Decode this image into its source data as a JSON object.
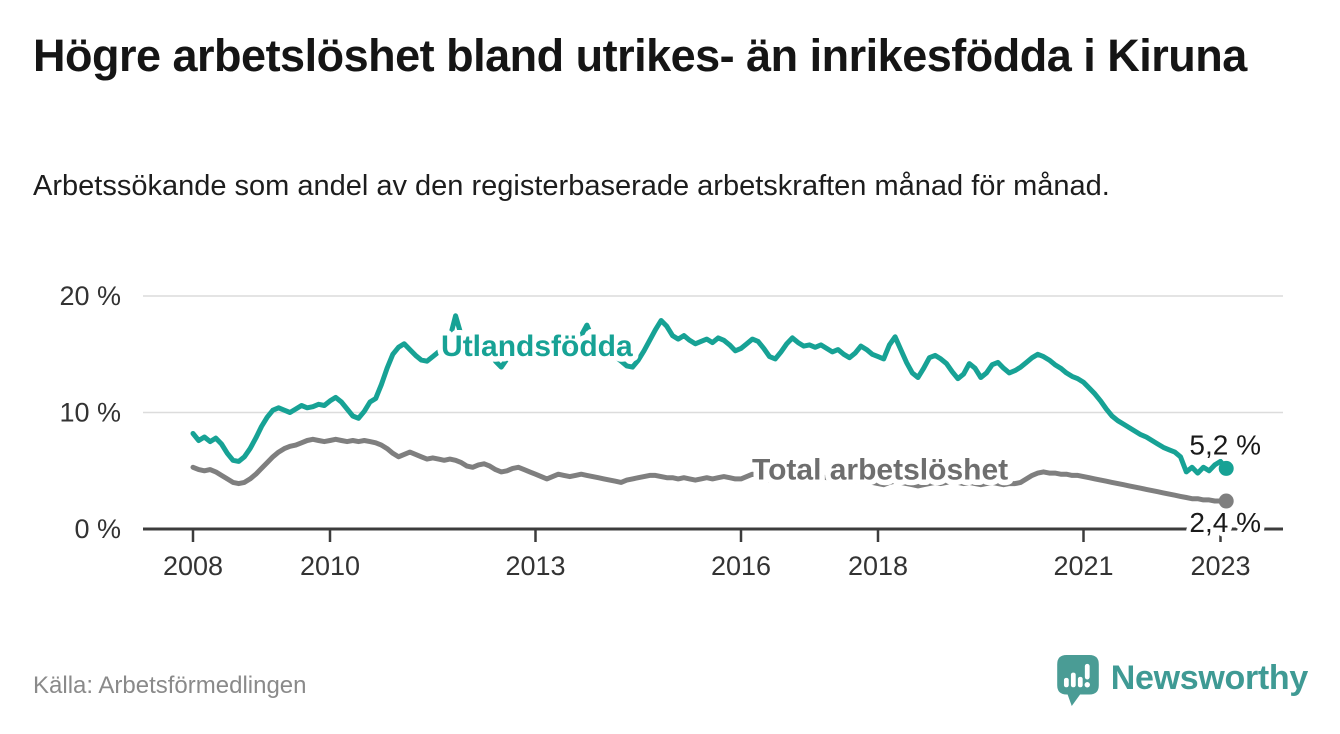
{
  "header": {
    "title": "Högre arbetslöshet bland utrikes- än inrikesfödda i Kiruna",
    "subtitle": "Arbetssökande som andel av den registerbaserade arbetskraften månad för månad."
  },
  "footer": {
    "source": "Källa: Arbetsförmedlingen",
    "logo_text": "Newsworthy",
    "logo_icon": "bar-chart-speech-bubble-icon"
  },
  "colors": {
    "accent_teal": "#17a295",
    "series_gray": "#7f7f7f",
    "series_label_gray": "#6e6e6e",
    "grid": "#dcdcdc",
    "axis": "#3c3c3c",
    "axis_text": "#333333",
    "value_text": "#1a1a1a",
    "logo_teal": "#459a93"
  },
  "chart_data": {
    "type": "line",
    "unit": "%",
    "grid": "horizontal-only",
    "legend": "inline-labels",
    "x_start_year": 2008,
    "x_step_months": 1,
    "x_axis": {
      "range": [
        2007.3,
        2023.9
      ],
      "ticks": [
        {
          "value": 2008,
          "label": "2008"
        },
        {
          "value": 2010,
          "label": "2010"
        },
        {
          "value": 2013,
          "label": "2013"
        },
        {
          "value": 2016,
          "label": "2016"
        },
        {
          "value": 2018,
          "label": "2018"
        },
        {
          "value": 2021,
          "label": "2021"
        },
        {
          "value": 2023,
          "label": "2023"
        }
      ]
    },
    "y_axis": {
      "range": [
        0,
        20
      ],
      "ticks": [
        {
          "value": 0,
          "label": "0 %"
        },
        {
          "value": 10,
          "label": "10 %"
        },
        {
          "value": 20,
          "label": "20 %"
        }
      ]
    },
    "series": [
      {
        "name": "Total arbetslöshet",
        "color": "#7f7f7f",
        "label": {
          "text": "Total arbetslöshet",
          "t": 2018.03,
          "v": 5.06,
          "color": "#6e6e6e"
        },
        "end_label": {
          "text": "2,4 %",
          "position": "below"
        },
        "values": [
          5.3,
          5.1,
          5.0,
          5.1,
          4.9,
          4.6,
          4.3,
          4.0,
          3.9,
          4.0,
          4.3,
          4.7,
          5.2,
          5.7,
          6.2,
          6.6,
          6.9,
          7.1,
          7.2,
          7.4,
          7.6,
          7.7,
          7.6,
          7.5,
          7.6,
          7.7,
          7.6,
          7.5,
          7.6,
          7.5,
          7.6,
          7.5,
          7.4,
          7.2,
          6.9,
          6.5,
          6.2,
          6.4,
          6.6,
          6.4,
          6.2,
          6.0,
          6.1,
          6.0,
          5.9,
          6.0,
          5.9,
          5.7,
          5.4,
          5.3,
          5.5,
          5.6,
          5.4,
          5.1,
          4.9,
          5.0,
          5.2,
          5.3,
          5.1,
          4.9,
          4.7,
          4.5,
          4.3,
          4.5,
          4.7,
          4.6,
          4.5,
          4.6,
          4.7,
          4.6,
          4.5,
          4.4,
          4.3,
          4.2,
          4.1,
          4.0,
          4.2,
          4.3,
          4.4,
          4.5,
          4.6,
          4.6,
          4.5,
          4.4,
          4.4,
          4.3,
          4.4,
          4.3,
          4.2,
          4.3,
          4.4,
          4.3,
          4.4,
          4.5,
          4.4,
          4.3,
          4.3,
          4.5,
          4.7,
          4.6,
          4.4,
          4.2,
          4.1,
          4.2,
          4.3,
          4.4,
          4.3,
          4.2,
          4.3,
          4.4,
          4.5,
          4.4,
          4.3,
          4.2,
          4.1,
          4.0,
          4.1,
          4.2,
          4.1,
          4.0,
          3.9,
          3.8,
          4.0,
          4.1,
          4.0,
          3.9,
          3.8,
          3.7,
          3.8,
          3.9,
          4.0,
          3.9,
          4.0,
          4.1,
          4.0,
          3.9,
          4.0,
          3.9,
          3.8,
          3.9,
          4.0,
          3.9,
          3.8,
          3.9,
          3.9,
          4.0,
          4.3,
          4.6,
          4.8,
          4.9,
          4.8,
          4.8,
          4.7,
          4.7,
          4.6,
          4.6,
          4.5,
          4.4,
          4.3,
          4.2,
          4.1,
          4.0,
          3.9,
          3.8,
          3.7,
          3.6,
          3.5,
          3.4,
          3.3,
          3.2,
          3.1,
          3.0,
          2.9,
          2.8,
          2.7,
          2.6,
          2.6,
          2.5,
          2.5,
          2.4,
          2.4,
          2.4
        ]
      },
      {
        "name": "Utlandsfödda",
        "color": "#17a295",
        "label": {
          "text": "Utlandsfödda",
          "t": 2013.02,
          "v": 15.65,
          "color": "#17a295"
        },
        "end_label": {
          "text": "5,2 %",
          "position": "above"
        },
        "values": [
          8.2,
          7.6,
          7.9,
          7.5,
          7.8,
          7.3,
          6.5,
          5.9,
          5.8,
          6.2,
          6.9,
          7.8,
          8.8,
          9.6,
          10.2,
          10.4,
          10.2,
          10.0,
          10.3,
          10.6,
          10.4,
          10.5,
          10.7,
          10.6,
          11.0,
          11.3,
          10.9,
          10.3,
          9.7,
          9.5,
          10.1,
          10.9,
          11.2,
          12.4,
          13.8,
          15.0,
          15.6,
          15.9,
          15.4,
          14.9,
          14.5,
          14.4,
          14.8,
          15.2,
          15.6,
          16.4,
          18.3,
          16.6,
          15.8,
          15.5,
          15.7,
          15.9,
          15.3,
          14.4,
          13.9,
          14.6,
          15.2,
          15.5,
          15.3,
          15.1,
          15.2,
          15.5,
          15.3,
          15.4,
          15.2,
          15.5,
          15.3,
          15.8,
          16.6,
          17.5,
          16.3,
          15.7,
          15.4,
          15.1,
          14.8,
          14.4,
          14.0,
          13.9,
          14.5,
          15.3,
          16.2,
          17.1,
          17.9,
          17.4,
          16.6,
          16.3,
          16.6,
          16.2,
          15.9,
          16.1,
          16.3,
          16.0,
          16.4,
          16.2,
          15.8,
          15.3,
          15.5,
          15.9,
          16.3,
          16.1,
          15.5,
          14.8,
          14.6,
          15.2,
          15.9,
          16.4,
          16.0,
          15.7,
          15.8,
          15.6,
          15.8,
          15.5,
          15.2,
          15.4,
          15.0,
          14.7,
          15.1,
          15.7,
          15.4,
          15.0,
          14.8,
          14.6,
          15.8,
          16.5,
          15.4,
          14.3,
          13.4,
          13.0,
          13.8,
          14.7,
          14.9,
          14.6,
          14.2,
          13.5,
          12.9,
          13.3,
          14.2,
          13.8,
          13.0,
          13.4,
          14.1,
          14.3,
          13.8,
          13.4,
          13.6,
          13.9,
          14.3,
          14.7,
          15.0,
          14.8,
          14.5,
          14.1,
          13.8,
          13.4,
          13.1,
          12.9,
          12.6,
          12.1,
          11.6,
          11.0,
          10.3,
          9.7,
          9.3,
          9.0,
          8.7,
          8.4,
          8.1,
          7.9,
          7.6,
          7.3,
          7.0,
          6.8,
          6.6,
          6.2,
          4.9,
          5.3,
          4.8,
          5.3,
          5.0,
          5.5,
          5.8,
          5.2
        ]
      }
    ]
  }
}
